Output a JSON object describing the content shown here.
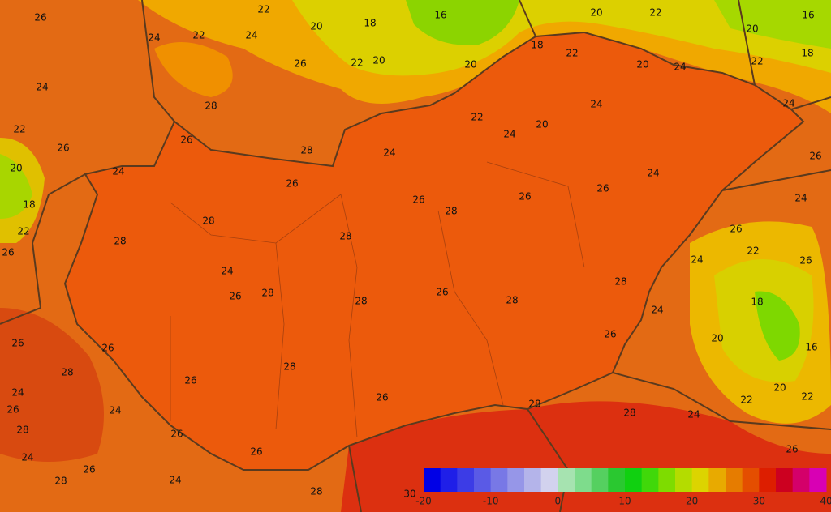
{
  "map": {
    "contour_labels": [
      26,
      24,
      22,
      22,
      24,
      20,
      18,
      16,
      20,
      22,
      16,
      20,
      18,
      18,
      22,
      20,
      20,
      24,
      22,
      22,
      20,
      26,
      24,
      28,
      22,
      26,
      26,
      28,
      24,
      22,
      24,
      20,
      24,
      24,
      20,
      24,
      18,
      22,
      26,
      26,
      26,
      28,
      26,
      26,
      24,
      26,
      24,
      28,
      28,
      28,
      26,
      22,
      26,
      24,
      24,
      26,
      28,
      26,
      28,
      28,
      28,
      24,
      18,
      26,
      26,
      20,
      16,
      26,
      28,
      28,
      26,
      26,
      24,
      26,
      24,
      28,
      28,
      24,
      20,
      22,
      22,
      28,
      26,
      26,
      26,
      24,
      26,
      28,
      24,
      28,
      30
    ],
    "colorbar": {
      "range": [
        -20,
        40
      ],
      "ticks": [
        -20,
        -10,
        0,
        10,
        20,
        30,
        40
      ],
      "colors": [
        "#0000e6",
        "#1f1fe8",
        "#3c3ce6",
        "#5a5ae6",
        "#7878e6",
        "#9696e8",
        "#b4b4ea",
        "#d2d2ee",
        "#a6e3b0",
        "#7edc8c",
        "#55d060",
        "#2ac830",
        "#10d010",
        "#40d80a",
        "#7edc00",
        "#b4dc00",
        "#dcd400",
        "#e8aa00",
        "#e67c00",
        "#e44e00",
        "#dd1e00",
        "#cc0020",
        "#d4006a",
        "#d800b4"
      ]
    }
  }
}
